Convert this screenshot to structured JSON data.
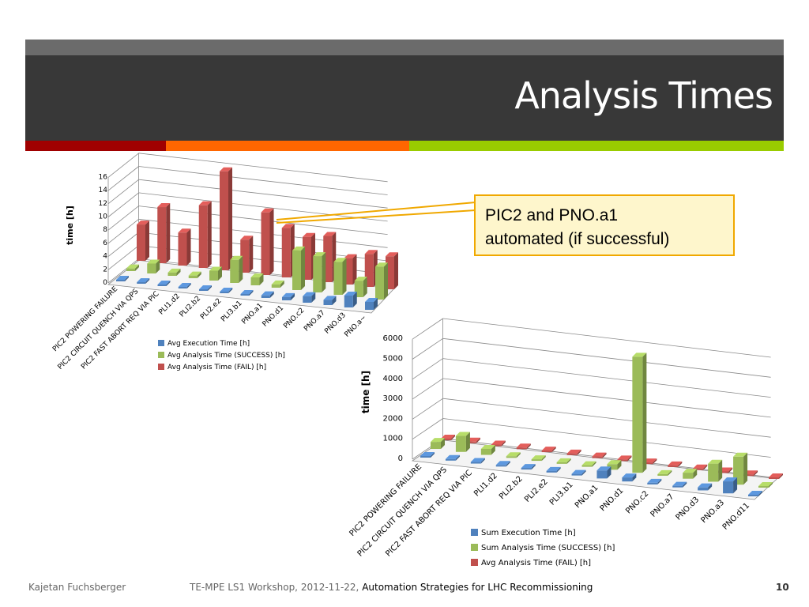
{
  "slide": {
    "title": "Analysis Times",
    "callout_lines": [
      "PIC2 and PNO.a1",
      "automated (if successful)"
    ],
    "footer_author": "Kajetan Fuchsberger",
    "footer_event": "TE-MPE LS1 Workshop, 2012-11-22, ",
    "footer_talk": "Automation Strategies for LHC Recommissioning",
    "page_number": "10",
    "stripe_colors": [
      "#a00000",
      "#ff6600",
      "#99cc00"
    ]
  },
  "chart_data": [
    {
      "type": "bar",
      "categories": [
        "PIC2 POWERING FAILURE",
        "PIC2 CIRCUIT QUENCH VIA QPS",
        "PIC2 FAST ABORT REQ VIA PIC",
        "PLI1.d2",
        "PLI2.b2",
        "PLI2.e2",
        "PLI3.b1",
        "PNO.a1",
        "PNO.d1",
        "PNO.c2",
        "PNO.a7",
        "PNO.d3",
        "PNO.a~"
      ],
      "ylabel": "time [h]",
      "ylim": [
        0,
        16
      ],
      "yticks": [
        "16",
        "14",
        "12",
        "10",
        "8",
        "6",
        "4",
        "2",
        "0"
      ],
      "series": [
        {
          "name": "Avg Execution Time [h]",
          "color": "#4f81bd",
          "values": [
            0.2,
            0.2,
            0.2,
            0.2,
            0.2,
            0.2,
            0.2,
            0.4,
            0.5,
            1.0,
            0.8,
            1.8,
            1.2
          ]
        },
        {
          "name": "Avg Analysis Time (SUCCESS) [h]",
          "color": "#9bbb59",
          "values": [
            0.4,
            1.5,
            0.5,
            0.4,
            1.5,
            3.5,
            1.2,
            0.5,
            6.0,
            5.5,
            5.0,
            2.5,
            5.0
          ]
        },
        {
          "name": "Avg Analysis Time (FAIL) [h]",
          "color": "#c0504d",
          "values": [
            5.5,
            8.5,
            5.0,
            9.5,
            15.0,
            5.0,
            9.5,
            7.5,
            6.5,
            7.0,
            4.0,
            5.0,
            5.0
          ]
        }
      ],
      "legend": "bottom-left",
      "grid": true
    },
    {
      "type": "bar",
      "categories": [
        "PIC2 POWERING FAILURE",
        "PIC2 CIRCUIT QUENCH VIA QPS",
        "PIC2 FAST ABORT REQ VIA PIC",
        "PLI1.d2",
        "PLI2.b2",
        "PLI2.e2",
        "PLI3.b1",
        "PNO.a1",
        "PNO.d1",
        "PNO.c2",
        "PNO.a7",
        "PNO.d3",
        "PNO.a3",
        "PNO.d11"
      ],
      "ylabel": "time [h]",
      "ylim": [
        0,
        6000
      ],
      "yticks": [
        "6000",
        "5000",
        "4000",
        "3000",
        "2000",
        "1000",
        "0"
      ],
      "series": [
        {
          "name": "Sum Execution Time [h]",
          "color": "#4f81bd",
          "values": [
            40,
            80,
            30,
            20,
            20,
            20,
            30,
            400,
            200,
            20,
            80,
            150,
            600,
            30
          ]
        },
        {
          "name": "Sum Analysis Time (SUCCESS) [h]",
          "color": "#9bbb59",
          "values": [
            350,
            800,
            300,
            30,
            20,
            30,
            30,
            280,
            5800,
            20,
            300,
            900,
            1400,
            20
          ]
        },
        {
          "name": "Avg Analysis Time (FAIL) [h]",
          "color": "#c0504d",
          "values": [
            20,
            20,
            20,
            20,
            20,
            20,
            20,
            20,
            20,
            20,
            20,
            20,
            20,
            20
          ]
        }
      ],
      "legend": "bottom-left",
      "grid": true
    }
  ]
}
